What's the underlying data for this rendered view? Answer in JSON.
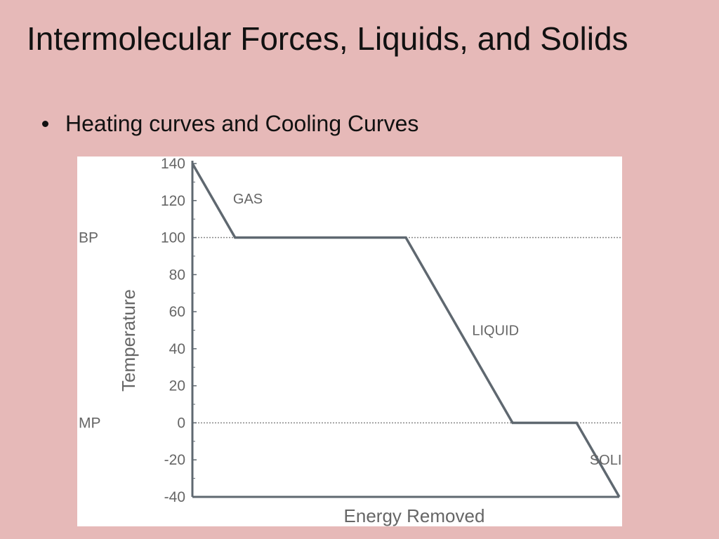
{
  "slide": {
    "title": "Intermolecular Forces, Liquids, and Solids",
    "bullet": "Heating curves and Cooling Curves"
  },
  "chart_data": {
    "type": "line",
    "xlabel": "Energy Removed",
    "ylabel": "Temperature",
    "ylim": [
      -40,
      140
    ],
    "xlim": [
      0,
      10
    ],
    "y_ticks": [
      140,
      120,
      100,
      80,
      60,
      40,
      20,
      0,
      -20,
      -40
    ],
    "reference_lines": [
      {
        "label": "BP",
        "value": 100
      },
      {
        "label": "MP",
        "value": 0
      }
    ],
    "series": [
      {
        "x": [
          0,
          1,
          5,
          7.5,
          9,
          10
        ],
        "y": [
          140,
          100,
          100,
          0,
          0,
          -40
        ]
      }
    ],
    "annotations": [
      {
        "text": "GAS",
        "x": 1.3,
        "y": 121
      },
      {
        "text": "LIQUID",
        "x": 7.1,
        "y": 50
      },
      {
        "text": "SOLID",
        "x": 9.8,
        "y": -20
      }
    ],
    "colors": {
      "line": "#5f6870",
      "text": "#666666",
      "ref_line": "#888888"
    }
  }
}
